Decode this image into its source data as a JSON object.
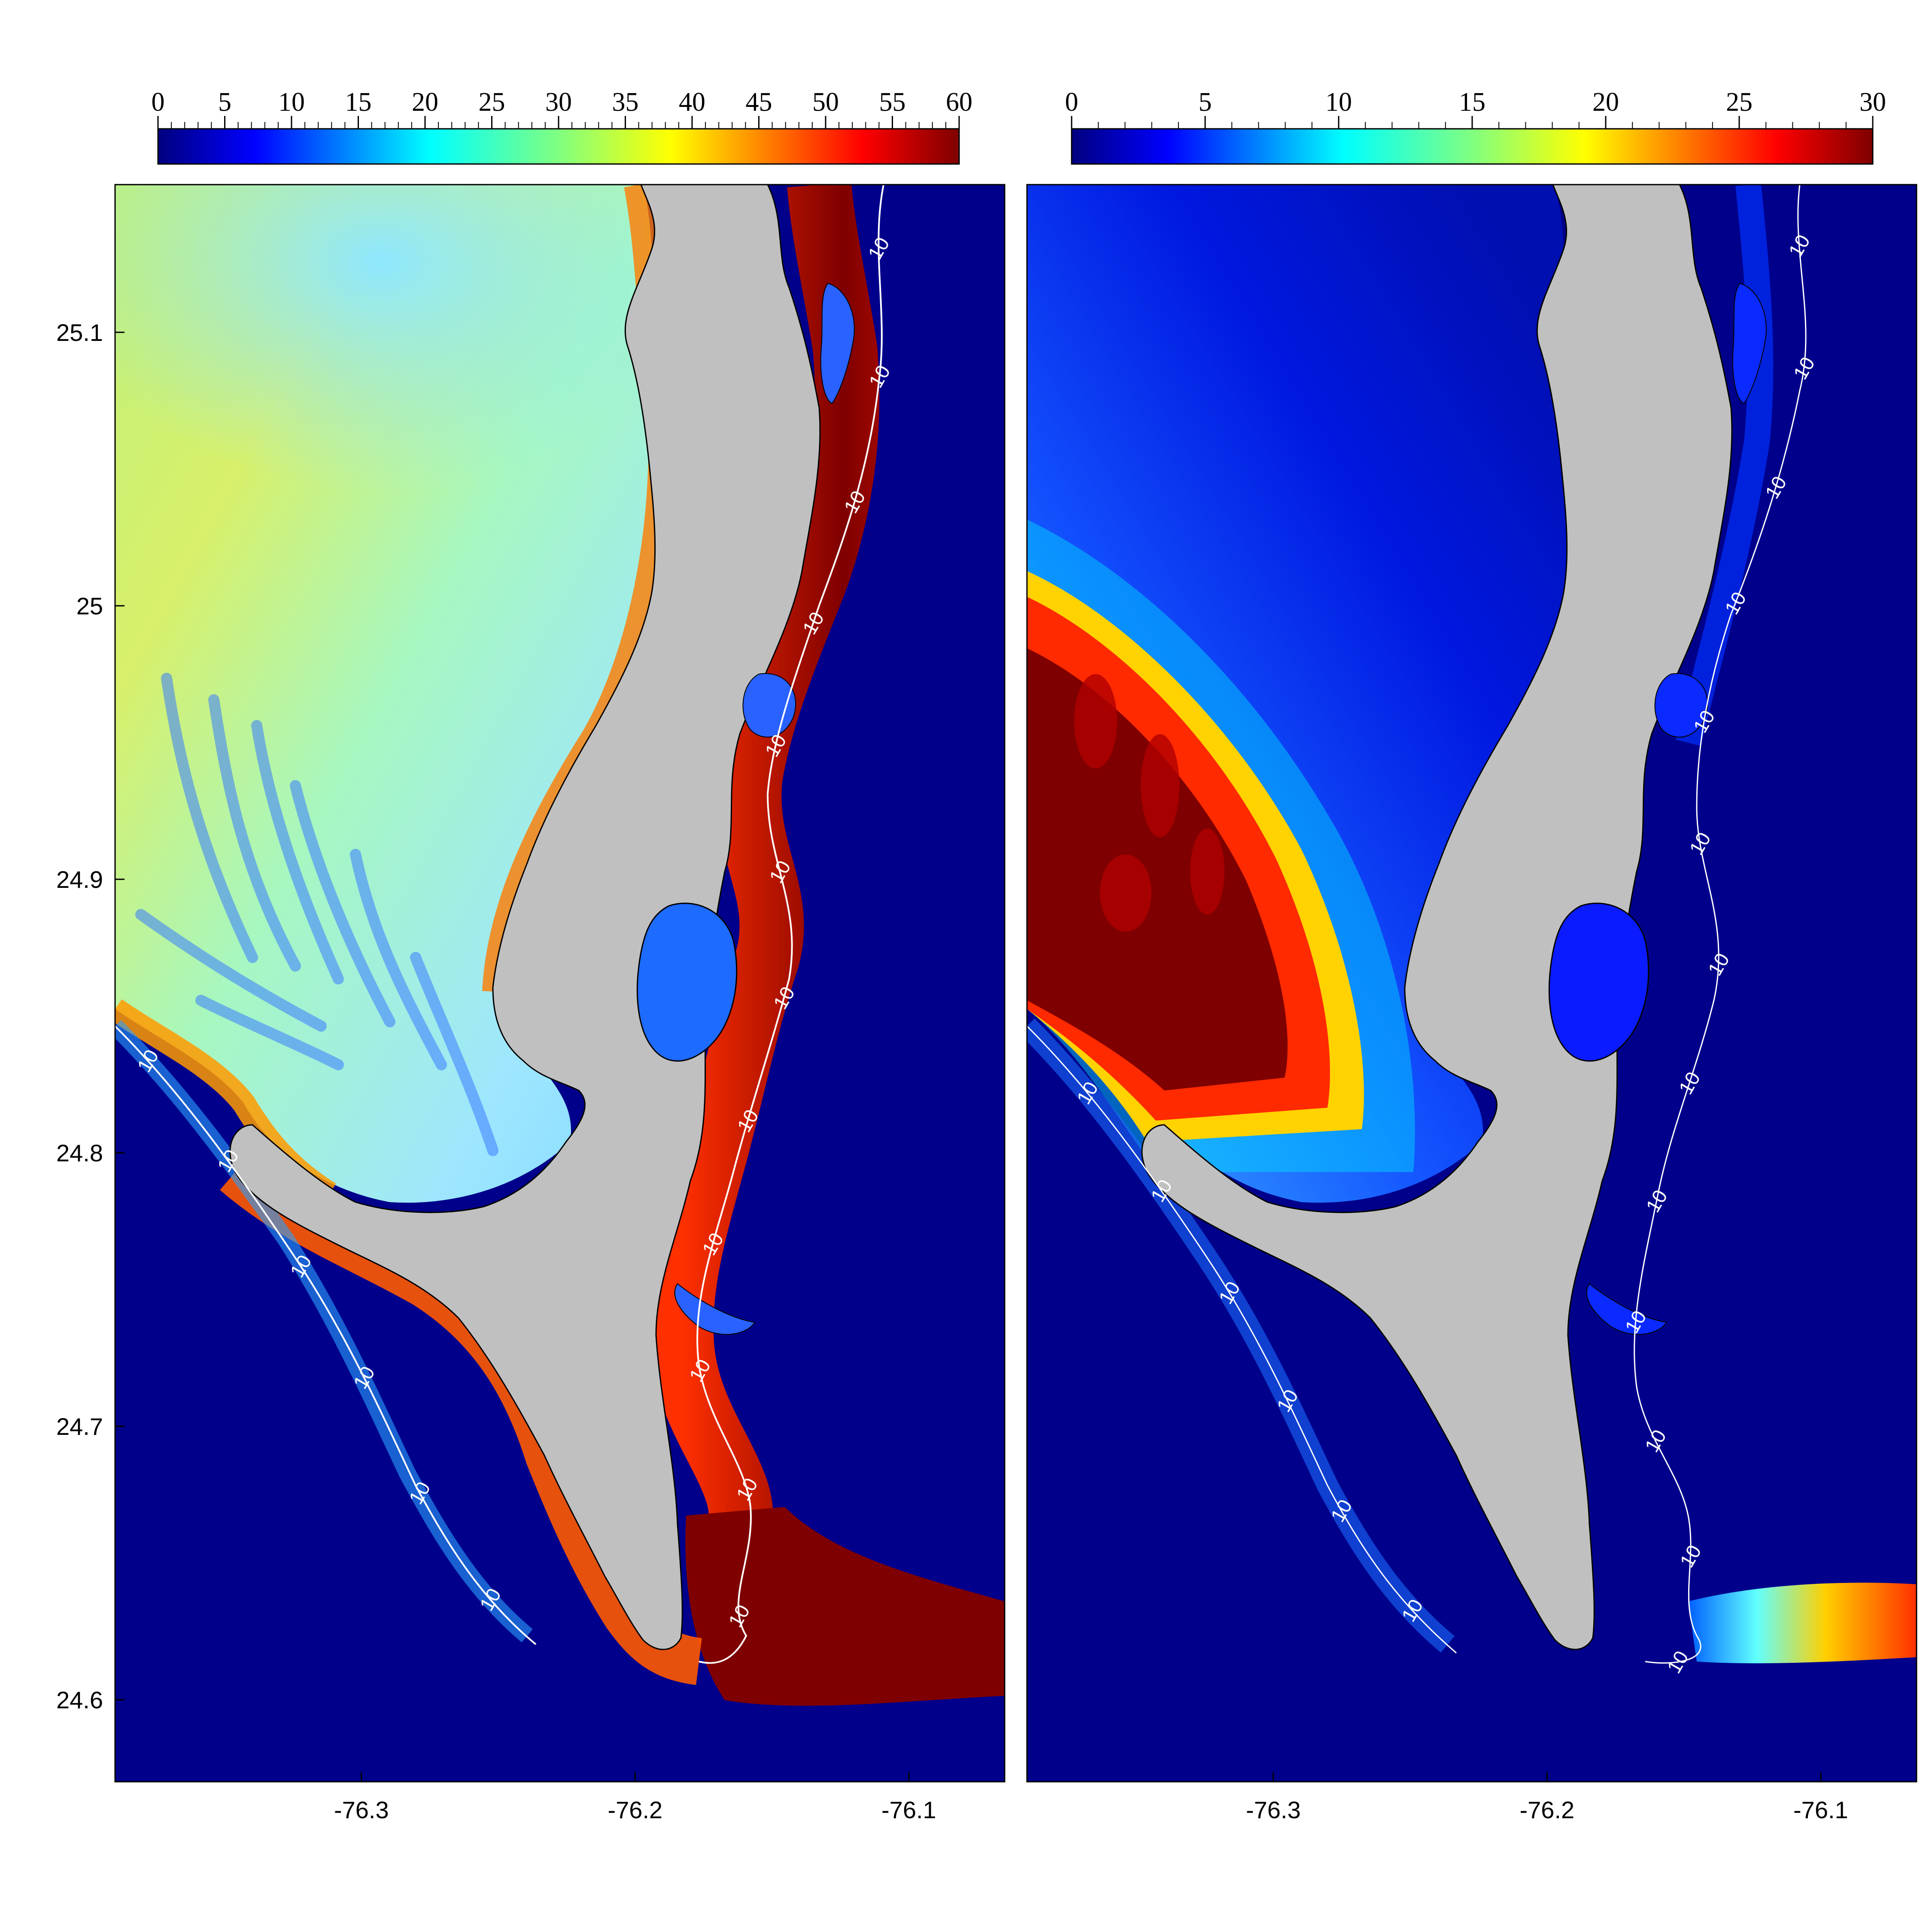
{
  "colors": {
    "land": "#c0c0c0",
    "deep_water": "#00008b",
    "contour_line": "#ffffff",
    "colormap": [
      "#00007f",
      "#0000ff",
      "#0080ff",
      "#80ffff",
      "#ffff00",
      "#ff8000",
      "#ff0000",
      "#7f0000"
    ]
  },
  "icons": {
    "land_mass": "island-shape",
    "contour": "isoline"
  },
  "axes": {
    "lat_ticks": [
      {
        "value": 25.1,
        "label": "25.1"
      },
      {
        "value": 25.0,
        "label": "25"
      },
      {
        "value": 24.9,
        "label": "24.9"
      },
      {
        "value": 24.8,
        "label": "24.8"
      },
      {
        "value": 24.7,
        "label": "24.7"
      },
      {
        "value": 24.6,
        "label": "24.6"
      }
    ],
    "lon_ticks": [
      {
        "value": -76.3,
        "label": "-76.3"
      },
      {
        "value": -76.2,
        "label": "-76.2"
      },
      {
        "value": -76.1,
        "label": "-76.1"
      }
    ],
    "lat_range": [
      24.57,
      25.154
    ],
    "lon_range": [
      -76.39,
      -76.065
    ]
  },
  "panels": [
    {
      "colorbar": {
        "min": 0,
        "max": 60,
        "labels": [
          "0",
          "5",
          "10",
          "15",
          "20",
          "25",
          "30",
          "35",
          "40",
          "45",
          "50",
          "55",
          "60"
        ],
        "minor_per_major": 5
      },
      "contour_label": "10",
      "contour_label_count": 18
    },
    {
      "colorbar": {
        "min": 0,
        "max": 30,
        "labels": [
          "0",
          "5",
          "10",
          "15",
          "20",
          "25",
          "30"
        ],
        "minor_per_major": 5
      },
      "contour_label": "10",
      "contour_label_count": 19
    }
  ]
}
